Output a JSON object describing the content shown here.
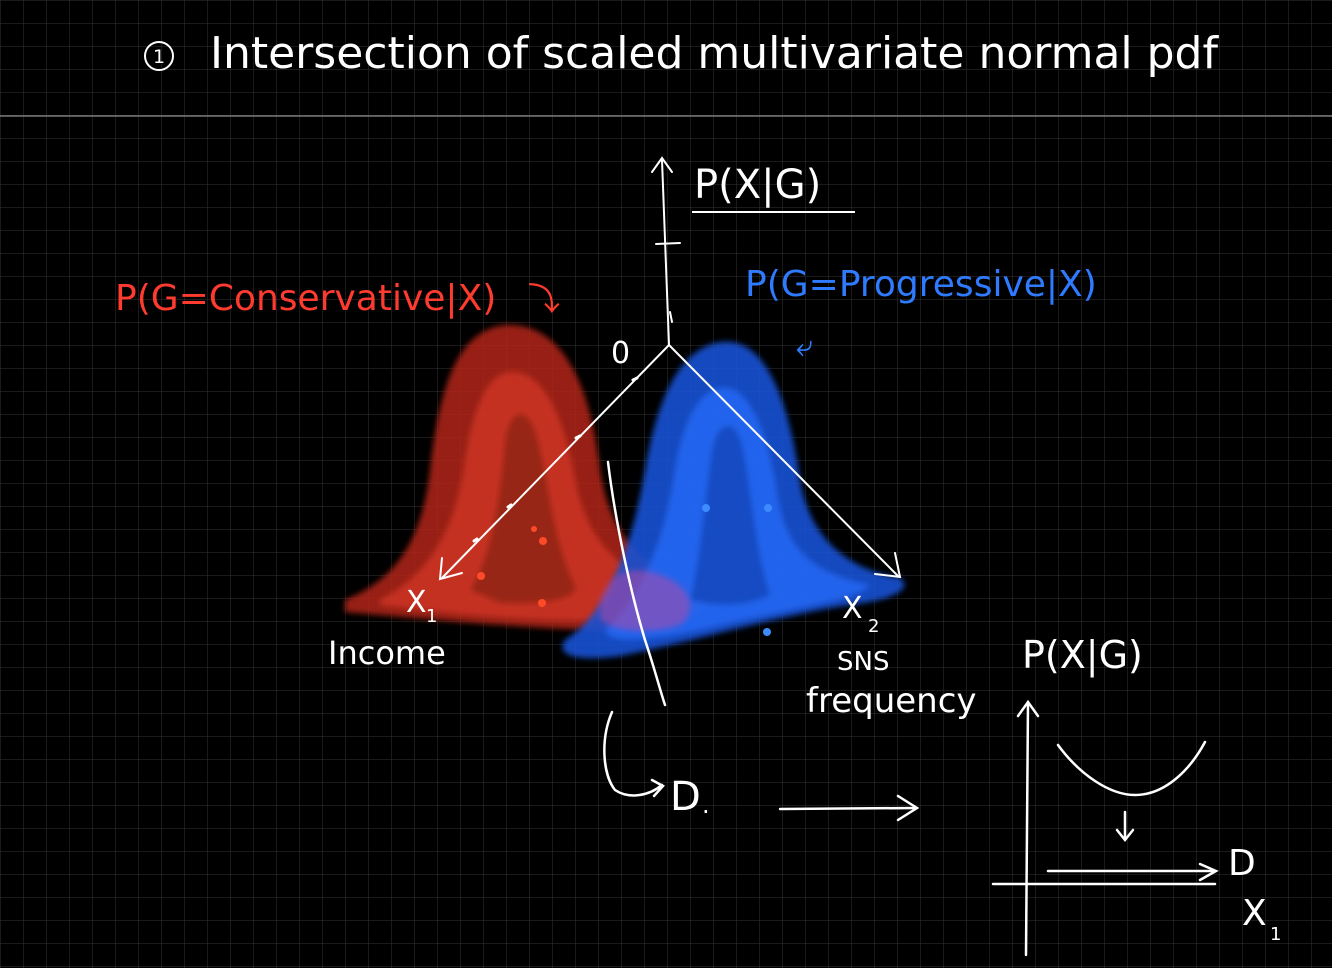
{
  "title": {
    "number": "1",
    "text": "Intersection of scaled multivariate normal pdf"
  },
  "axes3d": {
    "vertical_label": "P(X|G)",
    "origin_label": "0",
    "x1_label": "X",
    "x1_sub": "1",
    "x1_name": "Income",
    "x2_label": "X",
    "x2_sub": "2",
    "x2_name_line1": "SNS",
    "x2_name_line2": "frequency"
  },
  "classes": {
    "conservative": {
      "label": "P(G=Conservative|X)",
      "mark": "⤵",
      "color": "#e8341f"
    },
    "progressive": {
      "label": "P(G=Progressive|X)",
      "mark": "⤶",
      "color": "#1f6bff"
    }
  },
  "boundary": {
    "label": "D",
    "label_suffix": "."
  },
  "inset": {
    "ylabel": "P(X|G)",
    "line_label": "D",
    "xlabel": "X",
    "xlabel_sub": "1"
  },
  "colors": {
    "background": "#000000",
    "grid": "#3a3a3a",
    "ink": "#ffffff",
    "red": "#e8341f",
    "blue": "#1f6bff"
  }
}
